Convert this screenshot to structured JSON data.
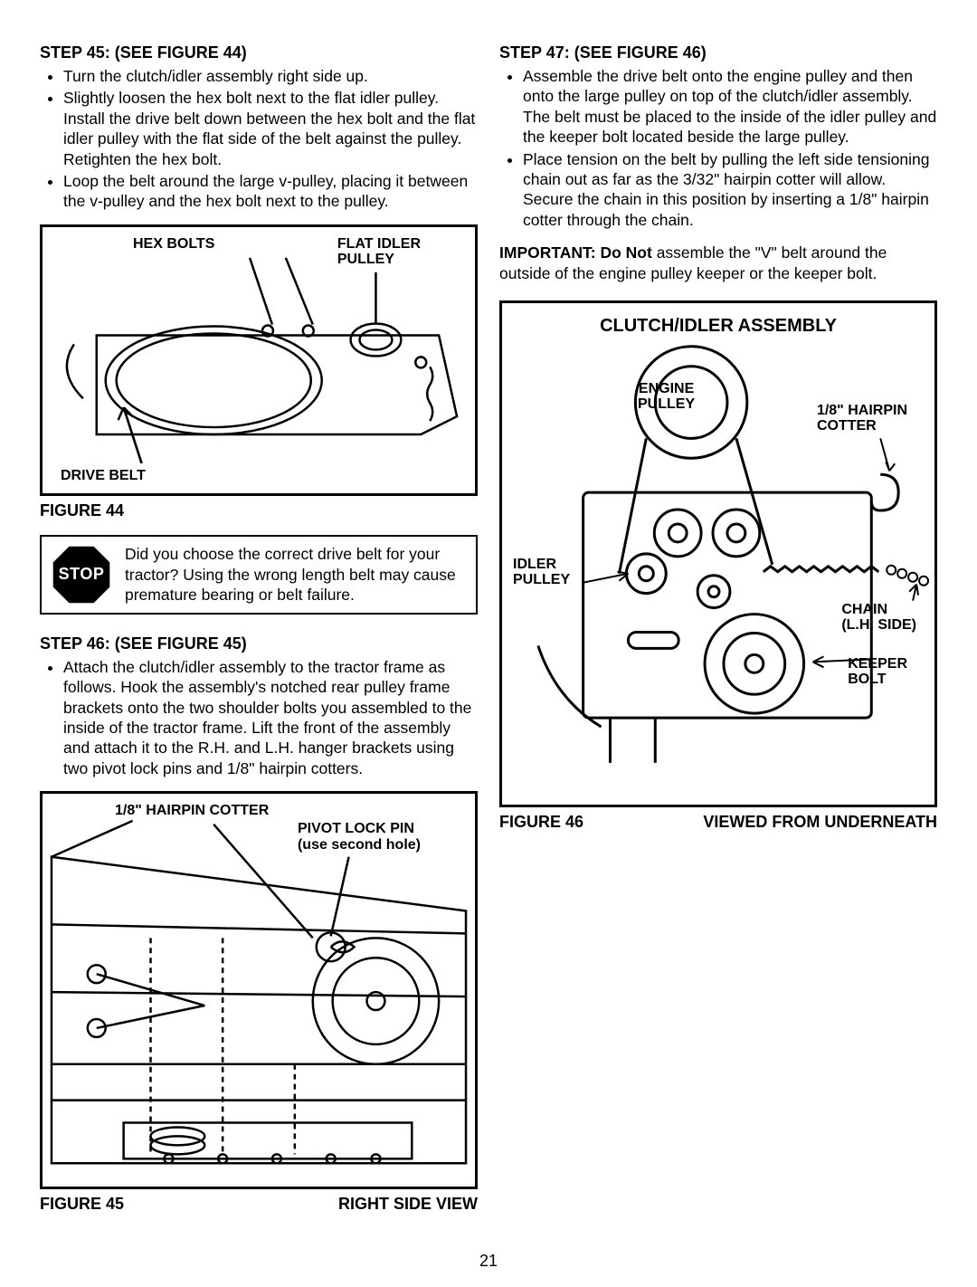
{
  "page_number": "21",
  "colors": {
    "text": "#000000",
    "background": "#ffffff",
    "border": "#000000",
    "stop_fill": "#000000",
    "stop_text": "#ffffff"
  },
  "left": {
    "step45": {
      "heading": "STEP 45: (SEE FIGURE 44)",
      "bullets": [
        "Turn the clutch/idler assembly right side up.",
        "Slightly loosen the hex bolt next to the flat idler pulley. Install the drive belt down between the hex bolt and the flat idler pulley with the flat side of the belt against the pulley. Retighten the hex bolt.",
        "Loop the belt around the large v-pulley, placing it between the v-pulley and the hex bolt next to the pulley."
      ]
    },
    "figure44": {
      "caption": "FIGURE 44",
      "labels": {
        "hex_bolts": "HEX BOLTS",
        "flat_idler": "FLAT IDLER PULLEY",
        "drive_belt": "DRIVE BELT"
      }
    },
    "stop": {
      "label": "STOP",
      "text": "Did you choose the correct drive belt for your tractor? Using the wrong length belt may cause premature bearing or belt failure."
    },
    "step46": {
      "heading": "STEP 46: (SEE FIGURE 45)",
      "bullets": [
        "Attach the clutch/idler assembly to the tractor frame as follows. Hook the assembly's notched rear pulley frame brackets onto the two shoulder bolts you assembled to the inside of the tractor frame. Lift the front of the assembly and attach it to the R.H. and L.H. hanger brackets using two pivot lock pins and 1/8\" hairpin cotters."
      ]
    },
    "figure45": {
      "caption_left": "FIGURE 45",
      "caption_right": "RIGHT SIDE VIEW",
      "labels": {
        "hairpin": "1/8\" HAIRPIN COTTER",
        "pivot_pin_a": "PIVOT LOCK PIN",
        "pivot_pin_b": "(use second hole)"
      }
    }
  },
  "right": {
    "step47": {
      "heading": "STEP 47: (SEE FIGURE 46)",
      "bullets": [
        "Assemble the drive belt onto the engine pulley and then onto the large pulley on top of the clutch/idler assembly. The belt must be placed to the inside of the idler pulley and the keeper bolt located beside the large pulley.",
        "Place tension on the belt by pulling the left side tensioning chain out as far as the 3/32\" hairpin cotter will allow. Secure the chain in this position by inserting a 1/8\" hairpin cotter through the chain."
      ]
    },
    "important": {
      "lead": "IMPORTANT: Do Not",
      "rest": " assemble the \"V\" belt around the outside of the engine pulley keeper or the keeper bolt."
    },
    "figure46": {
      "title": "CLUTCH/IDLER ASSEMBLY",
      "caption_left": "FIGURE 46",
      "caption_right": "VIEWED FROM UNDERNEATH",
      "labels": {
        "engine_pulley": "ENGINE PULLEY",
        "hairpin": "1/8\" HAIRPIN COTTER",
        "idler_pulley": "IDLER PULLEY",
        "chain": "CHAIN (L.H. SIDE)",
        "keeper_bolt": "KEEPER BOLT"
      }
    }
  }
}
